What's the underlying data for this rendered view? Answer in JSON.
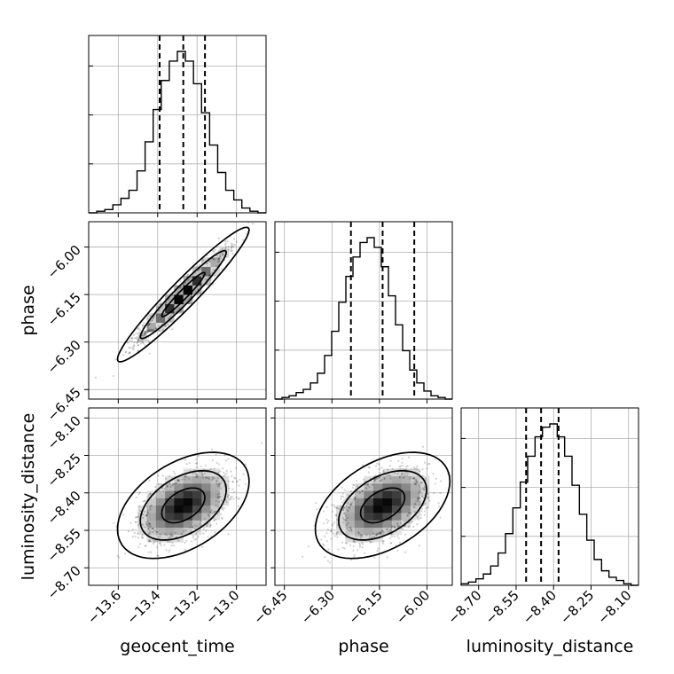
{
  "chart_data": {
    "type": "corner",
    "parameters": [
      "geocent_time",
      "phase",
      "luminosity_distance"
    ],
    "axis_labels": [
      "geocent_time",
      "phase",
      "luminosity_distance"
    ],
    "ranges": {
      "geocent_time": [
        -13.75,
        -12.85
      ],
      "phase": [
        -6.48,
        -5.92
      ],
      "luminosity_distance": [
        -8.77,
        -8.06
      ]
    },
    "ticks": {
      "geocent_time": [
        -13.6,
        -13.4,
        -13.2,
        -13.0
      ],
      "phase": [
        -6.45,
        -6.3,
        -6.15,
        -6.0
      ],
      "luminosity_distance": [
        -8.7,
        -8.55,
        -8.4,
        -8.25,
        -8.1
      ]
    },
    "tick_labels": {
      "geocent_time": [
        "−13.6",
        "−13.4",
        "−13.2",
        "−13.0"
      ],
      "phase": [
        "−6.45",
        "−6.30",
        "−6.15",
        "−6.00"
      ],
      "luminosity_distance": [
        "−8.70",
        "−8.55",
        "−8.40",
        "−8.25",
        "−8.10"
      ]
    },
    "quantiles": {
      "geocent_time": [
        -13.39,
        -13.27,
        -13.16
      ],
      "phase": [
        -6.24,
        -6.14,
        -6.04
      ],
      "luminosity_distance": [
        -8.51,
        -8.45,
        -8.38
      ]
    },
    "histograms": {
      "geocent_time": {
        "edges": [
          -13.75,
          -12.85
        ],
        "counts": [
          0,
          1,
          2,
          5,
          9,
          14,
          26,
          44,
          64,
          82,
          94,
          100,
          94,
          80,
          62,
          42,
          25,
          14,
          8,
          3,
          1,
          0
        ]
      },
      "phase": {
        "edges": [
          -6.48,
          -5.92
        ],
        "counts": [
          0,
          1,
          2,
          4,
          6,
          10,
          16,
          27,
          42,
          60,
          76,
          88,
          97,
          100,
          94,
          82,
          64,
          46,
          30,
          18,
          10,
          5,
          2,
          1,
          0
        ]
      },
      "luminosity_distance": {
        "edges": [
          -8.77,
          -8.06
        ],
        "counts": [
          1,
          2,
          4,
          7,
          12,
          20,
          32,
          48,
          64,
          80,
          92,
          98,
          100,
          92,
          80,
          62,
          44,
          28,
          16,
          9,
          5,
          3,
          1,
          0
        ]
      }
    },
    "joint": [
      {
        "x": "geocent_time",
        "y": "phase",
        "mean": [
          -13.27,
          -6.15
        ],
        "sd": [
          0.11,
          0.07
        ],
        "corr": 0.96
      },
      {
        "x": "geocent_time",
        "y": "luminosity_distance",
        "mean": [
          -13.27,
          -8.45
        ],
        "sd": [
          0.11,
          0.07
        ],
        "corr": 0.45
      },
      {
        "x": "phase",
        "y": "luminosity_distance",
        "mean": [
          -6.14,
          -8.45
        ],
        "sd": [
          0.07,
          0.07
        ],
        "corr": 0.45
      }
    ],
    "contour_levels": [
      0.39,
      0.86,
      0.99
    ],
    "grid": true
  }
}
